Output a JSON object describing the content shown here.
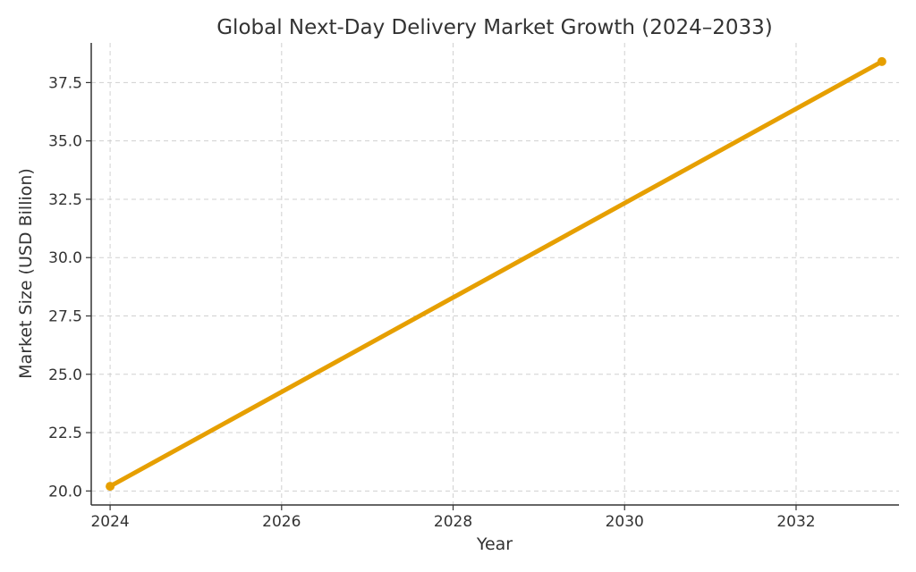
{
  "chart_data": {
    "type": "line",
    "title": "Global Next-Day Delivery Market Growth (2024–2033)",
    "xlabel": "Year",
    "ylabel": "Market Size (USD Billion)",
    "xlim": [
      2023.78,
      2033.2
    ],
    "ylim": [
      19.4,
      39.2
    ],
    "xticks": [
      2024,
      2026,
      2028,
      2030,
      2032
    ],
    "xtick_labels": [
      "2024",
      "2026",
      "2028",
      "2030",
      "2032"
    ],
    "yticks": [
      20.0,
      22.5,
      25.0,
      27.5,
      30.0,
      32.5,
      35.0,
      37.5
    ],
    "ytick_labels": [
      "20.0",
      "22.5",
      "25.0",
      "27.5",
      "30.0",
      "32.5",
      "35.0",
      "37.5"
    ],
    "grid": true,
    "series": [
      {
        "color": "#E69F00",
        "x": [
          2024,
          2033
        ],
        "y": [
          20.2,
          38.4
        ]
      }
    ]
  }
}
